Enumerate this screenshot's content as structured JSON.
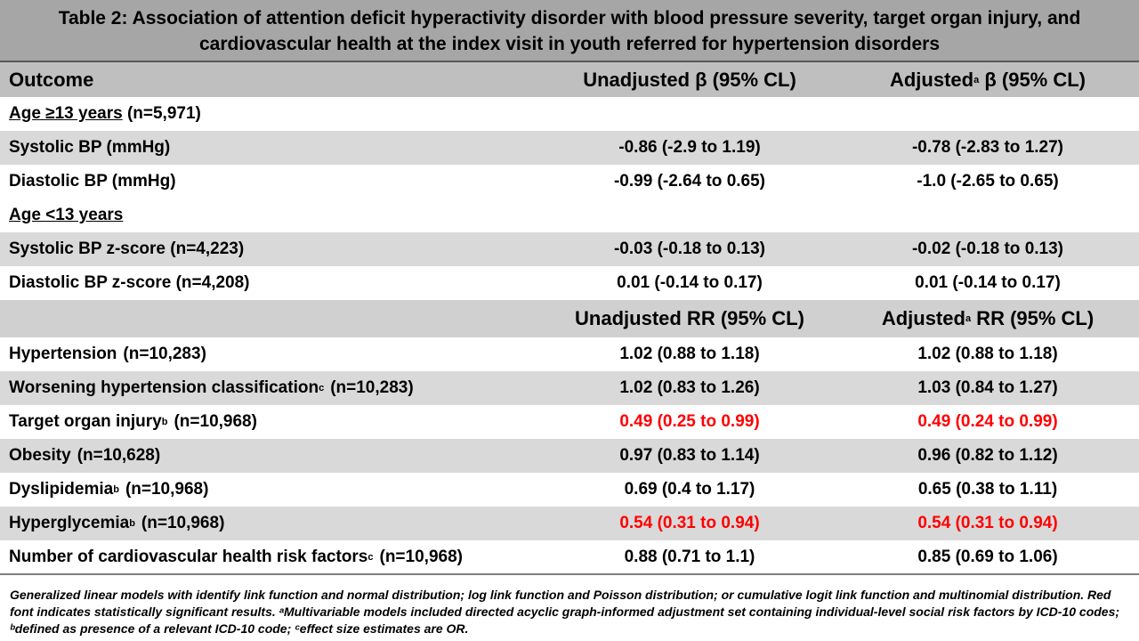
{
  "title": "Table 2: Association of attention deficit hyperactivity disorder with blood pressure severity, target organ injury, and cardiovascular health at the index visit in youth referred for hypertension disorders",
  "header1": {
    "outcome": "Outcome",
    "unadj": "Unadjusted β (95% CL)",
    "adj_prefix": "Adjusted",
    "adj_sup": "a",
    "adj_suffix": " β (95% CL)"
  },
  "group1": {
    "label": "Age ≥13 years",
    "n": " (n=5,971)"
  },
  "rows_bp1": [
    {
      "outcome": "Systolic BP (mmHg)",
      "unadj": "-0.86 (-2.9 to 1.19)",
      "adj": "-0.78 (-2.83 to 1.27)"
    },
    {
      "outcome": "Diastolic BP (mmHg)",
      "unadj": "-0.99 (-2.64 to 0.65)",
      "adj": "-1.0 (-2.65 to 0.65)"
    }
  ],
  "group2": {
    "label": "Age <13 years"
  },
  "rows_bp2": [
    {
      "outcome": "Systolic BP z-score (n=4,223)",
      "unadj": "-0.03 (-0.18 to 0.13)",
      "adj": "-0.02 (-0.18 to 0.13)"
    },
    {
      "outcome": "Diastolic BP z-score (n=4,208)",
      "unadj": "0.01 (-0.14 to 0.17)",
      "adj": "0.01 (-0.14 to 0.17)"
    }
  ],
  "header2": {
    "unadj": "Unadjusted RR (95% CL)",
    "adj_prefix": "Adjusted",
    "adj_sup": "a",
    "adj_suffix": " RR (95% CL)"
  },
  "rows_rr": [
    {
      "outcome": "Hypertension",
      "sup": "",
      "n": "(n=10,283)",
      "unadj": "1.02 (0.88 to 1.18)",
      "adj": "1.02 (0.88 to 1.18)",
      "significant": false
    },
    {
      "outcome": "Worsening hypertension classification",
      "sup": "c",
      "n": "(n=10,283)",
      "unadj": "1.02 (0.83 to 1.26)",
      "adj": "1.03 (0.84 to 1.27)",
      "significant": false
    },
    {
      "outcome": "Target organ injury",
      "sup": "b",
      "n": "(n=10,968)",
      "unadj": "0.49 (0.25 to 0.99)",
      "adj": "0.49 (0.24 to 0.99)",
      "significant": true
    },
    {
      "outcome": "Obesity",
      "sup": "",
      "n": "(n=10,628)",
      "unadj": "0.97 (0.83 to 1.14)",
      "adj": "0.96 (0.82 to 1.12)",
      "significant": false
    },
    {
      "outcome": "Dyslipidemia",
      "sup": "b",
      "n": "(n=10,968)",
      "unadj": "0.69 (0.4 to 1.17)",
      "adj": "0.65 (0.38 to 1.11)",
      "significant": false
    },
    {
      "outcome": "Hyperglycemia",
      "sup": "b",
      "n": "(n=10,968)",
      "unadj": "0.54 (0.31 to 0.94)",
      "adj": "0.54 (0.31 to 0.94)",
      "significant": true
    },
    {
      "outcome": "Number of cardiovascular health risk factors",
      "sup": "c",
      "n": "(n=10,968)",
      "unadj": "0.88 (0.71 to 1.1)",
      "adj": "0.85 (0.69 to 1.06)",
      "significant": false
    }
  ],
  "footnote": "Generalized linear models with identify link function and normal distribution; log link function and Poisson distribution; or cumulative logit link function and multinomial distribution. Red font indicates statistically significant results. ᵃMultivariable models included directed acyclic graph-informed adjustment set containing individual-level social risk factors by ICD-10 codes; ᵇdefined as presence of a relevant ICD-10 code; ᶜeffect size estimates are OR.",
  "colors": {
    "significant": "#ff0000",
    "title_bg": "#a6a6a6",
    "stripe": "#d9d9d9"
  }
}
